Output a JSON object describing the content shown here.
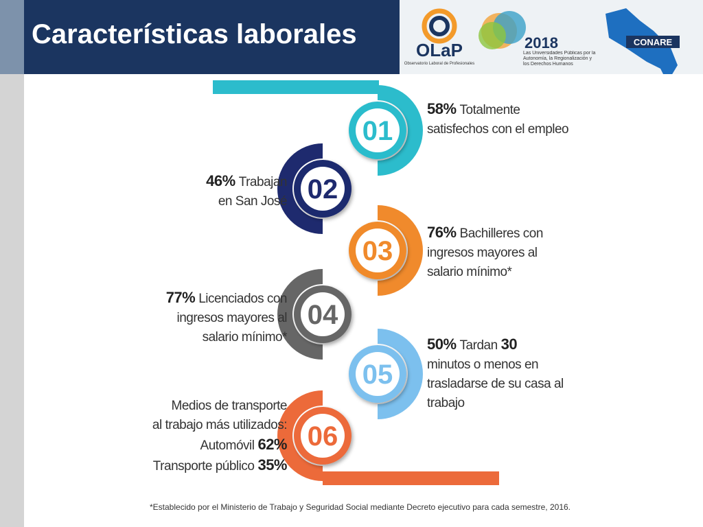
{
  "header": {
    "title": "Características laborales"
  },
  "logos": {
    "olap": "OLaP",
    "olap_sub": "Observatorio Laboral de Profesionales",
    "year": "2018",
    "slogan": "Las Universidades Públicas por la Autonomía, la Regionalización y los Derechos Humanos",
    "conare": "CONARE"
  },
  "items": [
    {
      "number": "01",
      "lines": [
        [
          {
            "text": "58%",
            "bold": true
          },
          {
            "text": "Totalmente",
            "bold": false
          }
        ],
        [
          {
            "text": "satisfechos con el empleo",
            "bold": false
          }
        ]
      ]
    },
    {
      "number": "02",
      "lines": [
        [
          {
            "text": "46%",
            "bold": true
          },
          {
            "text": "Trabajan",
            "bold": false
          }
        ],
        [
          {
            "text": "en San José",
            "bold": false
          }
        ]
      ]
    },
    {
      "number": "03",
      "lines": [
        [
          {
            "text": "76%",
            "bold": true
          },
          {
            "text": "Bachilleres con",
            "bold": false
          }
        ],
        [
          {
            "text": "ingresos mayores al",
            "bold": false
          }
        ],
        [
          {
            "text": "salario mínimo*",
            "bold": false
          }
        ]
      ]
    },
    {
      "number": "04",
      "lines": [
        [
          {
            "text": "77%",
            "bold": true
          },
          {
            "text": "Licenciados con",
            "bold": false
          }
        ],
        [
          {
            "text": "ingresos mayores al",
            "bold": false
          }
        ],
        [
          {
            "text": "salario mínimo*",
            "bold": false
          }
        ]
      ]
    },
    {
      "number": "05",
      "lines": [
        [
          {
            "text": "50%",
            "bold": true
          },
          {
            "text": "Tardan",
            "bold": false
          },
          {
            "text": "30",
            "bold": true
          }
        ],
        [
          {
            "text": "minutos o menos en",
            "bold": false
          }
        ],
        [
          {
            "text": "trasladarse de su casa al",
            "bold": false
          }
        ],
        [
          {
            "text": "trabajo",
            "bold": false
          }
        ]
      ]
    },
    {
      "number": "06",
      "lines": [
        [
          {
            "text": "Medios de transporte",
            "bold": false
          }
        ],
        [
          {
            "text": "al trabajo más utilizados:",
            "bold": false
          }
        ],
        [
          {
            "text": "Automóvil",
            "bold": false
          },
          {
            "text": "62%",
            "bold": true
          }
        ],
        [
          {
            "text": "Transporte público",
            "bold": false
          },
          {
            "text": "35%",
            "bold": true
          }
        ]
      ]
    }
  ],
  "footnote": "*Establecido por el Ministerio de Trabajo y Seguridad Social mediante Decreto ejecutivo para cada semestre, 2016."
}
